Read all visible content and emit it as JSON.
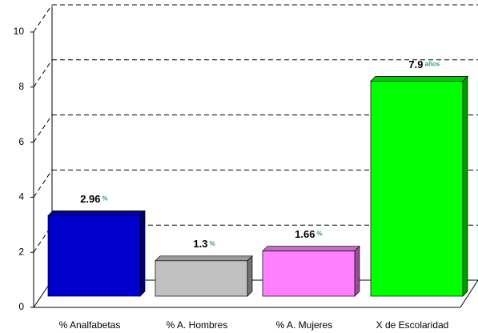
{
  "chart_data": {
    "type": "bar3d",
    "categories": [
      "% Analfabetas",
      "% A. Hombres",
      "% A. Mujeres",
      "X de Escolaridad"
    ],
    "values": [
      2.96,
      1.3,
      1.66,
      7.9
    ],
    "value_units": [
      "%",
      "%",
      "%",
      "años"
    ],
    "colors": [
      "#0000cc",
      "#c0c0c0",
      "#ff80ff",
      "#00ff00"
    ],
    "ylim": [
      0,
      10
    ],
    "yticks": [
      0,
      2,
      4,
      6,
      8,
      10
    ],
    "grid": true
  }
}
